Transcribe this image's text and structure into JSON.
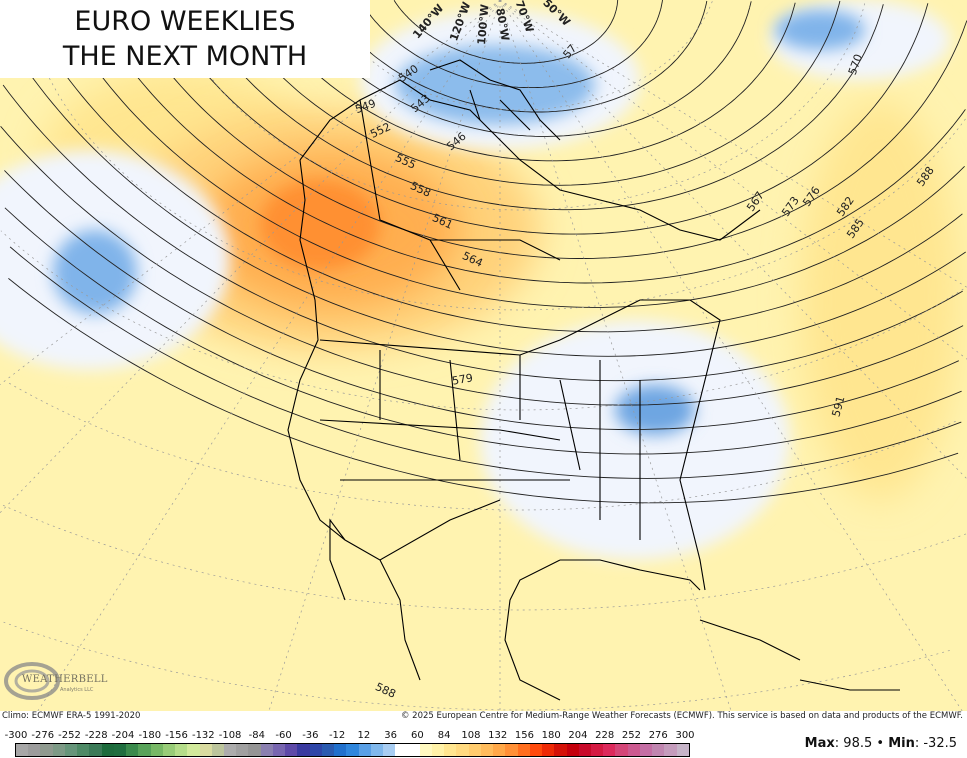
{
  "title": {
    "line1": "EURO WEEKLIES",
    "line2": "THE NEXT MONTH"
  },
  "contour_labels": [
    "540",
    "543",
    "546",
    "549",
    "552",
    "555",
    "558",
    "561",
    "564",
    "567",
    "570",
    "573",
    "576",
    "579",
    "582",
    "585",
    "588",
    "591",
    "588",
    "57"
  ],
  "longitude_labels": [
    "140°W",
    "120°W",
    "100°W",
    "80°W",
    "70°W",
    "50°W"
  ],
  "logo": {
    "text": "WEATHERBELL",
    "sub": "Analytics LLC"
  },
  "footer": {
    "climo": "Climo: ECMWF ERA-5 1991-2020",
    "copyright": "© 2025 European Centre for Medium-Range Weather Forecasts (ECMWF). This service is based on data and products of the ECMWF."
  },
  "colorbar": {
    "ticks": [
      "-300",
      "-276",
      "-252",
      "-228",
      "-204",
      "-180",
      "-156",
      "-132",
      "-108",
      "-84",
      "-60",
      "-36",
      "-12",
      "12",
      "36",
      "60",
      "84",
      "108",
      "132",
      "156",
      "180",
      "204",
      "228",
      "252",
      "276",
      "300"
    ],
    "colors": [
      "#a7a7a7",
      "#9c9c9c",
      "#8f9a8f",
      "#7d9a86",
      "#66957a",
      "#4e8a66",
      "#3b7a57",
      "#1d6b3c",
      "#1f6e3f",
      "#3a8a4c",
      "#58a35a",
      "#78b866",
      "#98cc78",
      "#b5dd8a",
      "#d2ea9c",
      "#d9dba0",
      "#bcc59c",
      "#acacac",
      "#a0a0a0",
      "#959595",
      "#8b80b0",
      "#7866b0",
      "#5e4aa8",
      "#3a3aa0",
      "#2e46a8",
      "#2a5bb0",
      "#2170cc",
      "#2f86dc",
      "#5aa0e6",
      "#80b8ec",
      "#a8cdf2",
      "#ffffff",
      "#ffffff",
      "#fff9c0",
      "#fff2a8",
      "#ffe690",
      "#ffda80",
      "#ffcc6e",
      "#ffbc5c",
      "#ffa848",
      "#ff9036",
      "#ff6e1e",
      "#ff4a0c",
      "#ee2a06",
      "#d41208",
      "#c4000c",
      "#c80a2a",
      "#d41a42",
      "#dc2a5c",
      "#d44678",
      "#cc5a90",
      "#c46ea4",
      "#c086b0",
      "#c49cbc",
      "#c6b4c8"
    ]
  },
  "stats": {
    "max_label": "Max",
    "max": "98.5",
    "min_label": "Min",
    "min": "-32.5"
  },
  "colors": {
    "background": "#fff3b0",
    "positive": "#ff9a3c",
    "negative": "#7aaee6",
    "neutral": "#f1f5fd"
  }
}
